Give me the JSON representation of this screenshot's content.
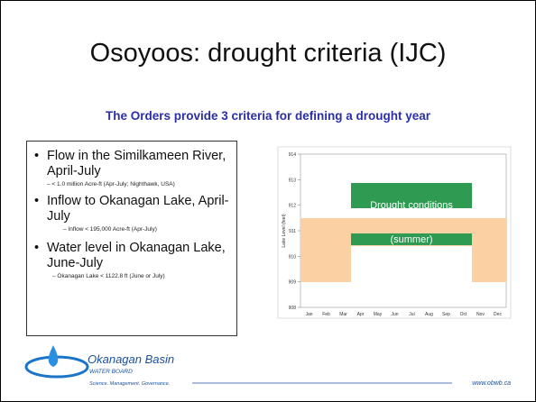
{
  "title": "Osoyoos: drought criteria (IJC)",
  "subtitle": "The Orders provide 3 criteria for defining a drought year",
  "criteria": [
    {
      "text": "Flow in the Similkameen River, April-July",
      "detail": "– < 1.0 million Acre-ft (Apr-July; Nighthawk, USA)"
    },
    {
      "text": "Inflow to Okanagan Lake, April-July",
      "detail": "– Inflow < 195,000 Acre-ft (Apr-July)"
    },
    {
      "text": "Water level in Okanagan Lake, June-July",
      "detail": "– Okanagan Lake < 1122.8 ft (June or July)"
    }
  ],
  "chart_data": {
    "type": "range",
    "y_label": "Lake Level (feet)",
    "categories": [
      "Jan",
      "Feb",
      "Mar",
      "Apr",
      "May",
      "Jun",
      "Jul",
      "Aug",
      "Sep",
      "Oct",
      "Nov",
      "Dec"
    ],
    "ylim": [
      908,
      914
    ],
    "yticks": [
      908,
      909,
      910,
      911,
      912,
      913,
      914
    ],
    "annotations": [
      "Drought conditions",
      "(summer)"
    ]
  },
  "footer": {
    "org": "Okanagan Basin",
    "org_sub": "WATER BOARD",
    "tagline": "Science. Management. Governance.",
    "url": "www.obwb.ca"
  }
}
